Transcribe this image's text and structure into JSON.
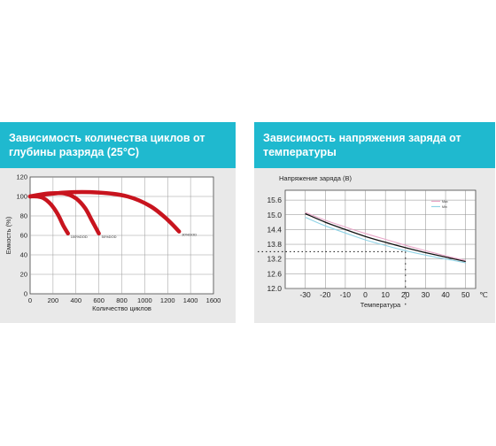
{
  "left_panel": {
    "header": "Зависимость количества циклов от глубины разряда (25°С)"
  },
  "right_panel": {
    "header": "Зависимость напряжения заряда от температуры"
  },
  "colors": {
    "header_bg": "#1fb9cf",
    "panel_bg": "#e9e9e9",
    "curve_red": "#c8141e",
    "curve_black": "#111111",
    "curve_pink": "#e8a6c8",
    "curve_cyan": "#8fd3e6"
  },
  "chart_data": [
    {
      "type": "line",
      "title": "",
      "xlabel": "Количество циклов",
      "ylabel": "Емкость (%)",
      "xlim": [
        0,
        1600
      ],
      "ylim": [
        0,
        120
      ],
      "x_ticks": [
        "0",
        "200",
        "400",
        "600",
        "800",
        "1000",
        "1200",
        "1400",
        "1600"
      ],
      "y_ticks": [
        "0",
        "20",
        "40",
        "60",
        "80",
        "100",
        "120"
      ],
      "grid": true,
      "series": [
        {
          "name": "100%DOD",
          "x": [
            0,
            60,
            120,
            180,
            240,
            290,
            330
          ],
          "values": [
            100,
            100,
            98,
            92,
            82,
            70,
            62
          ]
        },
        {
          "name": "50%DOD",
          "x": [
            0,
            150,
            300,
            400,
            480,
            540,
            600
          ],
          "values": [
            100,
            103,
            103,
            98,
            88,
            75,
            62
          ]
        },
        {
          "name": "30%DOD",
          "x": [
            0,
            300,
            600,
            850,
            1050,
            1200,
            1300
          ],
          "values": [
            100,
            104,
            104,
            100,
            90,
            76,
            64
          ]
        }
      ]
    },
    {
      "type": "line",
      "title": "",
      "xlabel": "Температура",
      "ylabel": "Напряжение заряда (В)",
      "x_unit": "℃",
      "xlim": [
        -40,
        55
      ],
      "ylim": [
        12.0,
        16.0
      ],
      "x_ticks": [
        "-30",
        "-20",
        "-10",
        "0",
        "10",
        "20",
        "30",
        "40",
        "50"
      ],
      "y_ticks": [
        "12.0",
        "12.6",
        "13.2",
        "13.8",
        "14.4",
        "15.0",
        "15.6"
      ],
      "grid": true,
      "legend": [
        "Max",
        "Min"
      ],
      "reference": {
        "x": 20,
        "y": 13.5
      },
      "series": [
        {
          "name": "",
          "color": "black",
          "x": [
            -30,
            -20,
            -10,
            0,
            10,
            20,
            30,
            40,
            50
          ],
          "values": [
            15.05,
            14.7,
            14.4,
            14.12,
            13.88,
            13.66,
            13.46,
            13.28,
            13.1
          ]
        },
        {
          "name": "Max",
          "color": "pink",
          "x": [
            -30,
            -20,
            -10,
            0,
            10,
            20,
            30,
            40,
            50
          ],
          "values": [
            15.1,
            14.78,
            14.5,
            14.24,
            14.0,
            13.76,
            13.54,
            13.33,
            13.14
          ]
        },
        {
          "name": "Min",
          "color": "cyan",
          "x": [
            -30,
            -20,
            -10,
            0,
            10,
            20,
            30,
            40,
            50
          ],
          "values": [
            14.9,
            14.55,
            14.26,
            13.98,
            13.75,
            13.54,
            13.36,
            13.2,
            13.05
          ]
        }
      ]
    }
  ]
}
